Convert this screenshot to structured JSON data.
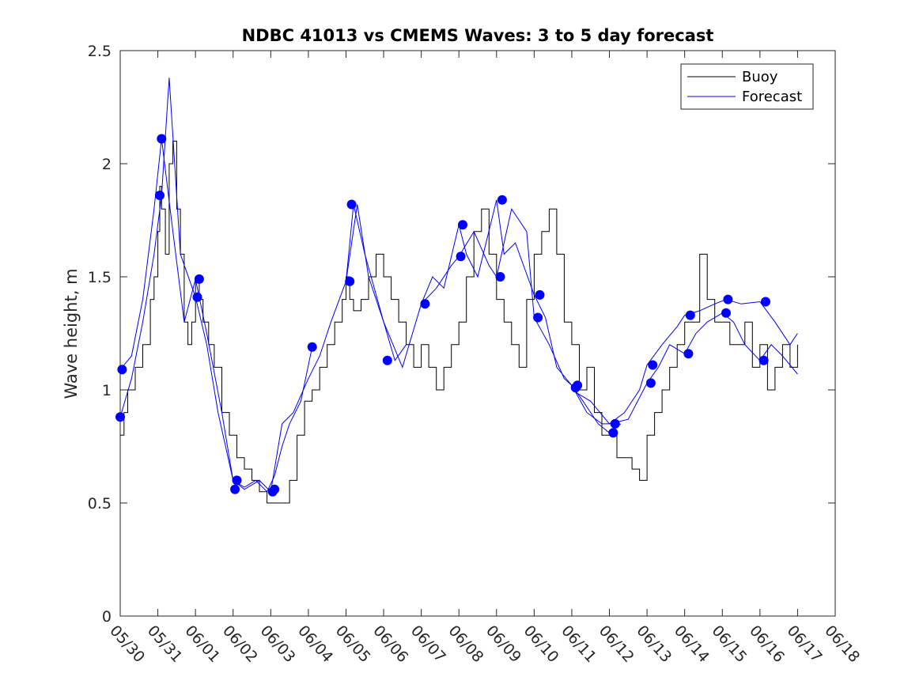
{
  "chart_data": {
    "type": "line",
    "title": "NDBC 41013 vs CMEMS Waves: 3 to 5 day forecast",
    "xlabel": "",
    "ylabel": "Wave height, m",
    "ylim": [
      0,
      2.5
    ],
    "xlim": [
      "05/30",
      "06/18"
    ],
    "x_ticks": [
      "05/30",
      "05/31",
      "06/01",
      "06/02",
      "06/03",
      "06/04",
      "06/05",
      "06/06",
      "06/07",
      "06/08",
      "06/09",
      "06/10",
      "06/11",
      "06/12",
      "06/13",
      "06/14",
      "06/15",
      "06/16",
      "06/17",
      "06/18"
    ],
    "y_ticks": [
      "0",
      "0.5",
      "1",
      "1.5",
      "2",
      "2.5"
    ],
    "grid": false,
    "legend_position": "top-right",
    "colors": {
      "buoy": "#000000",
      "forecast": "#0000ff"
    },
    "series": [
      {
        "name": "Buoy",
        "x_days": [
          0,
          0.1,
          0.2,
          0.4,
          0.6,
          0.8,
          0.9,
          1.0,
          1.05,
          1.1,
          1.2,
          1.3,
          1.4,
          1.5,
          1.6,
          1.7,
          1.8,
          1.9,
          2.0,
          2.1,
          2.2,
          2.35,
          2.5,
          2.7,
          2.9,
          3.1,
          3.3,
          3.5,
          3.7,
          3.9,
          4.1,
          4.3,
          4.5,
          4.7,
          4.9,
          5.1,
          5.3,
          5.5,
          5.7,
          5.9,
          6.0,
          6.1,
          6.2,
          6.4,
          6.6,
          6.8,
          7.0,
          7.2,
          7.4,
          7.6,
          7.8,
          8.0,
          8.2,
          8.4,
          8.6,
          8.8,
          9.0,
          9.2,
          9.4,
          9.6,
          9.8,
          10.0,
          10.2,
          10.4,
          10.6,
          10.8,
          11.0,
          11.2,
          11.4,
          11.6,
          11.8,
          12.0,
          12.2,
          12.4,
          12.6,
          12.8,
          13.0,
          13.2,
          13.4,
          13.6,
          13.8,
          14.0,
          14.2,
          14.4,
          14.6,
          14.8,
          15.0,
          15.2,
          15.4,
          15.6,
          15.8,
          16.0,
          16.2,
          16.4,
          16.6,
          16.8,
          17.0,
          17.2,
          17.4,
          17.6,
          17.8,
          18.0
        ],
        "values": [
          0.8,
          0.9,
          1.0,
          1.1,
          1.2,
          1.4,
          1.5,
          1.7,
          1.9,
          1.8,
          1.6,
          2.0,
          2.1,
          1.8,
          1.6,
          1.3,
          1.2,
          1.3,
          1.5,
          1.4,
          1.3,
          1.2,
          1.1,
          0.9,
          0.8,
          0.7,
          0.65,
          0.6,
          0.55,
          0.5,
          0.5,
          0.5,
          0.6,
          0.8,
          0.95,
          1.0,
          1.1,
          1.2,
          1.3,
          1.4,
          1.5,
          1.4,
          1.35,
          1.4,
          1.5,
          1.6,
          1.5,
          1.4,
          1.3,
          1.2,
          1.1,
          1.2,
          1.1,
          1.0,
          1.1,
          1.2,
          1.3,
          1.5,
          1.7,
          1.8,
          1.6,
          1.4,
          1.3,
          1.2,
          1.1,
          1.4,
          1.6,
          1.7,
          1.8,
          1.6,
          1.3,
          1.2,
          1.0,
          1.1,
          0.9,
          0.8,
          0.8,
          0.7,
          0.7,
          0.65,
          0.6,
          0.8,
          0.9,
          1.0,
          1.1,
          1.2,
          1.3,
          1.3,
          1.6,
          1.4,
          1.3,
          1.3,
          1.2,
          1.2,
          1.3,
          1.1,
          1.2,
          1.0,
          1.1,
          1.2,
          1.1,
          1.2
        ]
      },
      {
        "name": "Forecast",
        "runs": [
          {
            "x_days": [
              0,
              0.3,
              0.6,
              0.9,
              1.1,
              1.4,
              1.7,
              2.0,
              2.3,
              2.7,
              3.0,
              3.3,
              3.6,
              3.9,
              4.1,
              4.3,
              4.5,
              4.8,
              5.1
            ],
            "values": [
              1.09,
              1.15,
              1.4,
              1.8,
              2.11,
              1.7,
              1.3,
              1.49,
              1.25,
              0.9,
              0.6,
              0.57,
              0.6,
              0.55,
              0.62,
              0.75,
              0.85,
              0.95,
              1.19
            ]
          },
          {
            "x_days": [
              0,
              0.3,
              0.6,
              0.9,
              1.1,
              1.3,
              1.6,
              2.0,
              2.3,
              2.6,
              3.0,
              3.3,
              3.7,
              4.0,
              4.3,
              4.6,
              5.0,
              5.3,
              5.6,
              6.0,
              6.3,
              6.6,
              7.0,
              7.3,
              7.6
            ],
            "values": [
              0.88,
              1.05,
              1.3,
              1.6,
              1.86,
              2.38,
              1.6,
              1.41,
              1.2,
              0.9,
              0.6,
              0.56,
              0.6,
              0.55,
              0.85,
              0.9,
              1.05,
              1.15,
              1.3,
              1.48,
              1.82,
              1.5,
              1.3,
              1.13,
              1.2
            ]
          },
          {
            "x_days": [
              6.0,
              6.2,
              6.5,
              7.0,
              7.5,
              8.0,
              8.3,
              8.6,
              9.0,
              9.2,
              9.5,
              10.0,
              10.2,
              10.5,
              11.0,
              11.3,
              11.6,
              12.0,
              12.3,
              12.7,
              13.0,
              13.3
            ],
            "values": [
              1.48,
              1.82,
              1.6,
              1.3,
              1.1,
              1.38,
              1.5,
              1.45,
              1.73,
              1.6,
              1.5,
              1.84,
              1.6,
              1.65,
              1.42,
              1.32,
              1.1,
              1.02,
              0.95,
              0.85,
              0.81,
              0.85
            ]
          },
          {
            "x_days": [
              8.0,
              8.4,
              8.8,
              9.0,
              9.4,
              9.8,
              10.0,
              10.4,
              10.8,
              11.0,
              11.4,
              11.8,
              12.0,
              12.4,
              12.8,
              13.0,
              13.4,
              13.8,
              14.0,
              14.4,
              14.8,
              15.0,
              15.4,
              15.8,
              16.1,
              16.5,
              17.0,
              17.4,
              17.8,
              18.0
            ],
            "values": [
              1.38,
              1.45,
              1.55,
              1.59,
              1.7,
              1.55,
              1.5,
              1.8,
              1.7,
              1.32,
              1.2,
              1.05,
              1.02,
              0.9,
              0.85,
              0.85,
              0.9,
              1.0,
              1.11,
              1.2,
              1.28,
              1.33,
              1.35,
              1.38,
              1.4,
              1.38,
              1.39,
              1.3,
              1.2,
              1.25
            ]
          },
          {
            "x_days": [
              12.0,
              12.5,
              13.0,
              13.5,
              14.0,
              14.3,
              14.6,
              15.0,
              15.3,
              15.6,
              16.0,
              16.3,
              16.6,
              17.0,
              17.3,
              17.6,
              18.0
            ],
            "values": [
              1.0,
              0.95,
              0.85,
              0.87,
              1.03,
              1.1,
              1.2,
              1.16,
              1.25,
              1.3,
              1.34,
              1.3,
              1.2,
              1.13,
              1.2,
              1.15,
              1.07
            ]
          }
        ],
        "markers_x_days": [
          0,
          0.05,
          1.05,
          1.1,
          2.05,
          2.1,
          3.05,
          3.1,
          4.05,
          4.1,
          5.1,
          6.1,
          6.15,
          7.1,
          8.1,
          9.05,
          9.1,
          10.1,
          10.15,
          11.1,
          11.15,
          12.1,
          12.15,
          13.1,
          13.15,
          14.1,
          14.15,
          15.1,
          15.15,
          16.1,
          16.15,
          17.1,
          17.15
        ],
        "markers_values": [
          0.88,
          1.09,
          1.86,
          2.11,
          1.41,
          1.49,
          0.56,
          0.6,
          0.55,
          0.56,
          1.19,
          1.48,
          1.82,
          1.13,
          1.38,
          1.59,
          1.73,
          1.5,
          1.84,
          1.32,
          1.42,
          1.01,
          1.02,
          0.81,
          0.85,
          1.03,
          1.11,
          1.16,
          1.33,
          1.34,
          1.4,
          1.13,
          1.39
        ]
      }
    ]
  }
}
